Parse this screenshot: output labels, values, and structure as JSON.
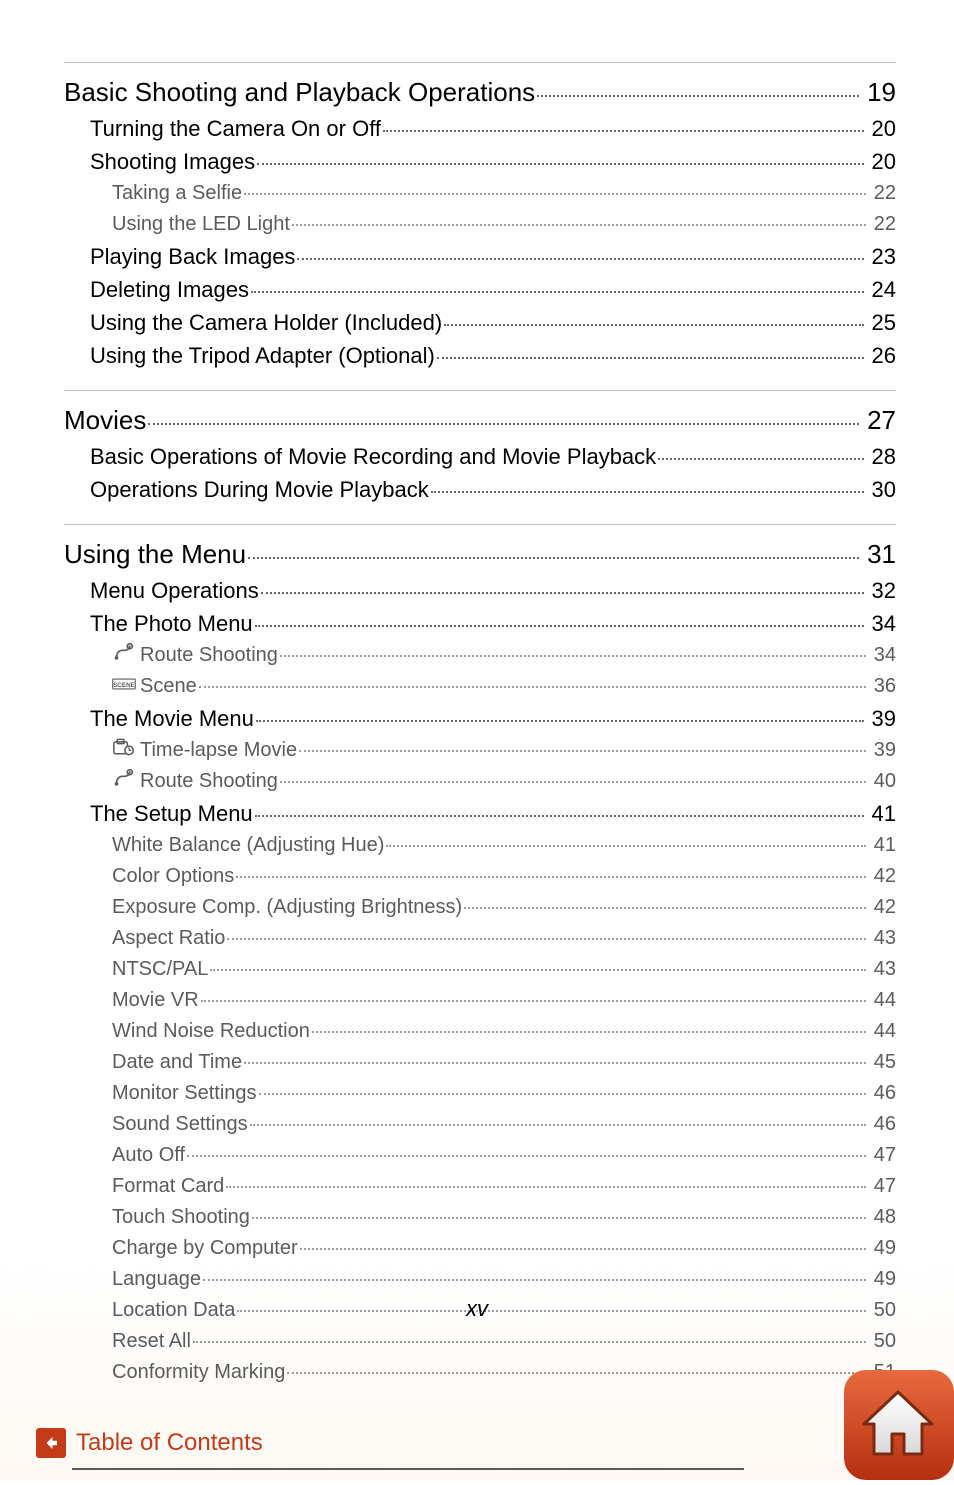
{
  "colors": {
    "text_main": "#000000",
    "text_sub": "#5b5b5b",
    "accent": "#c33b17",
    "rule": "#bfbfbf",
    "footer_rule": "#5a5a5a"
  },
  "fonts": {
    "lvl0_size": 26,
    "lvl1_size": 22,
    "lvl2_size": 20,
    "footer_size": 24,
    "page_num_size": 22
  },
  "page_number": "xv",
  "footer": {
    "label": "Table of Contents"
  },
  "sections": [
    {
      "title": "Basic Shooting and Playback Operations",
      "page": "19",
      "items": [
        {
          "level": 1,
          "title": "Turning the Camera On or Off",
          "page": "20"
        },
        {
          "level": 1,
          "title": "Shooting Images",
          "page": "20"
        },
        {
          "level": 2,
          "title": "Taking a Selfie",
          "page": "22"
        },
        {
          "level": 2,
          "title": "Using the LED Light",
          "page": "22"
        },
        {
          "level": 1,
          "title": "Playing Back Images",
          "page": "23"
        },
        {
          "level": 1,
          "title": "Deleting Images",
          "page": "24"
        },
        {
          "level": 1,
          "title": "Using the Camera Holder (Included)",
          "page": "25"
        },
        {
          "level": 1,
          "title": "Using the Tripod Adapter (Optional)",
          "page": "26"
        }
      ]
    },
    {
      "title": "Movies",
      "page": "27",
      "items": [
        {
          "level": 1,
          "title": "Basic Operations of Movie Recording and Movie Playback",
          "page": "28"
        },
        {
          "level": 1,
          "title": "Operations During Movie Playback",
          "page": "30"
        }
      ]
    },
    {
      "title": "Using the Menu",
      "page": "31",
      "items": [
        {
          "level": 1,
          "title": "Menu Operations",
          "page": "32"
        },
        {
          "level": 1,
          "title": "The Photo Menu",
          "page": "34"
        },
        {
          "level": 2,
          "icon": "route",
          "title": "Route Shooting",
          "page": "34"
        },
        {
          "level": 2,
          "icon": "scene",
          "title": "Scene",
          "page": "36"
        },
        {
          "level": 1,
          "title": "The Movie Menu",
          "page": "39"
        },
        {
          "level": 2,
          "icon": "timelapse",
          "title": "Time-lapse Movie",
          "page": "39"
        },
        {
          "level": 2,
          "icon": "route",
          "title": "Route Shooting",
          "page": "40"
        },
        {
          "level": 1,
          "title": "The Setup Menu",
          "page": "41"
        },
        {
          "level": 2,
          "title": "White Balance (Adjusting Hue)",
          "page": "41"
        },
        {
          "level": 2,
          "title": "Color Options",
          "page": "42"
        },
        {
          "level": 2,
          "title": "Exposure Comp. (Adjusting Brightness)",
          "page": "42"
        },
        {
          "level": 2,
          "title": "Aspect Ratio",
          "page": "43"
        },
        {
          "level": 2,
          "title": "NTSC/PAL",
          "page": "43"
        },
        {
          "level": 2,
          "title": "Movie VR",
          "page": "44"
        },
        {
          "level": 2,
          "title": "Wind Noise Reduction",
          "page": "44"
        },
        {
          "level": 2,
          "title": "Date and Time",
          "page": "45"
        },
        {
          "level": 2,
          "title": "Monitor Settings",
          "page": "46"
        },
        {
          "level": 2,
          "title": "Sound Settings",
          "page": "46"
        },
        {
          "level": 2,
          "title": "Auto Off",
          "page": "47"
        },
        {
          "level": 2,
          "title": "Format Card",
          "page": "47"
        },
        {
          "level": 2,
          "title": "Touch Shooting",
          "page": "48"
        },
        {
          "level": 2,
          "title": "Charge by Computer",
          "page": "49"
        },
        {
          "level": 2,
          "title": "Language",
          "page": "49"
        },
        {
          "level": 2,
          "title": "Location Data",
          "page": "50"
        },
        {
          "level": 2,
          "title": "Reset All",
          "page": "50"
        },
        {
          "level": 2,
          "title": "Conformity Marking",
          "page": "51"
        }
      ]
    }
  ]
}
